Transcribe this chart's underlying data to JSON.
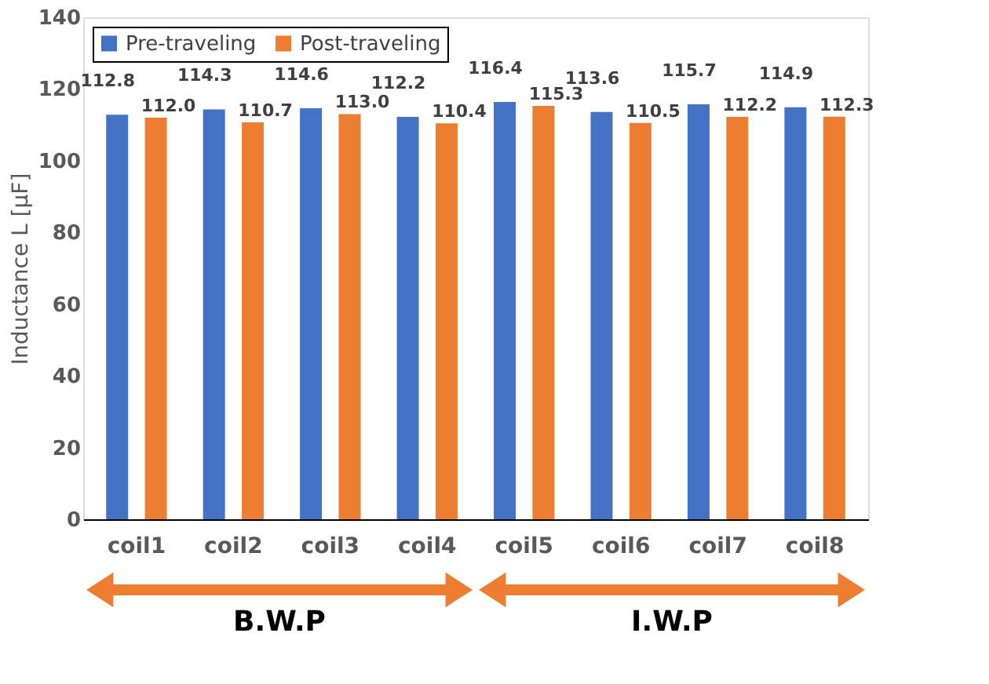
{
  "chart_data": {
    "type": "bar",
    "ylabel": "Inductance L [μF]",
    "categories": [
      "coil1",
      "coil2",
      "coil3",
      "coil4",
      "coil5",
      "coil6",
      "coil7",
      "coil8"
    ],
    "series": [
      {
        "name": "Pre-traveling",
        "color": "#4472c4",
        "values": [
          112.8,
          114.3,
          114.6,
          112.2,
          116.4,
          113.6,
          115.7,
          114.9
        ],
        "value_labels": [
          "112.8",
          "114.3",
          "114.6",
          "112.2",
          "116.4",
          "113.6",
          "115.7",
          "114.9"
        ]
      },
      {
        "name": "Post-traveling",
        "color": "#ed7d31",
        "values": [
          112.0,
          110.7,
          113.0,
          110.4,
          115.3,
          110.5,
          112.2,
          112.3
        ],
        "value_labels": [
          "112.0",
          "110.7",
          "113.0",
          "110.4",
          "115.3",
          "110.5",
          "112.2",
          "112.3"
        ]
      }
    ],
    "ylim": [
      0,
      140
    ],
    "yticks": [
      0,
      20,
      40,
      60,
      80,
      100,
      120,
      140
    ],
    "grid": false,
    "legend": "top left",
    "annotations": [
      "B.W.P",
      "I.W.P"
    ]
  }
}
